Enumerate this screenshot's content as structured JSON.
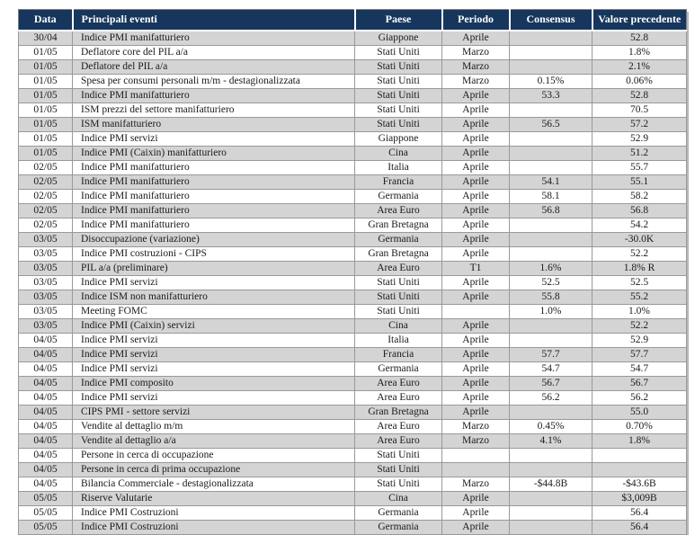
{
  "colors": {
    "header_bg": "#17365D",
    "header_text": "#FFFFFF",
    "row_shade": "#D4D4D4",
    "row_plain": "#FFFFFF",
    "grid_line": "#999999"
  },
  "table": {
    "columns": [
      "Data",
      "Principali eventi",
      "Paese",
      "Periodo",
      "Consensus",
      "Valore precedente"
    ],
    "column_keys": [
      "data",
      "evento",
      "paese",
      "periodo",
      "consensus",
      "valore-precedente"
    ],
    "rows": [
      [
        "30/04",
        "Indice PMI manifatturiero",
        "Giappone",
        "Aprile",
        "",
        "52.8"
      ],
      [
        "01/05",
        "Deflatore core del PIL a/a",
        "Stati Uniti",
        "Marzo",
        "",
        "1.8%"
      ],
      [
        "01/05",
        "Deflatore del PIL a/a",
        "Stati Uniti",
        "Marzo",
        "",
        "2.1%"
      ],
      [
        "01/05",
        "Spesa per consumi personali m/m - destagionalizzata",
        "Stati Uniti",
        "Marzo",
        "0.15%",
        "0.06%"
      ],
      [
        "01/05",
        "Indice PMI manifatturiero",
        "Stati Uniti",
        "Aprile",
        "53.3",
        "52.8"
      ],
      [
        "01/05",
        "ISM  prezzi del settore manifatturiero",
        "Stati Uniti",
        "Aprile",
        "",
        "70.5"
      ],
      [
        "01/05",
        "ISM manifatturiero",
        "Stati Uniti",
        "Aprile",
        "56.5",
        "57.2"
      ],
      [
        "01/05",
        "Indice PMI servizi",
        "Giappone",
        "Aprile",
        "",
        "52.9"
      ],
      [
        "01/05",
        "Indice PMI (Caixin) manifatturiero",
        "Cina",
        "Aprile",
        "",
        "51.2"
      ],
      [
        "02/05",
        "Indice PMI manifatturiero",
        "Italia",
        "Aprile",
        "",
        "55.7"
      ],
      [
        "02/05",
        "Indice PMI manifatturiero",
        "Francia",
        "Aprile",
        "54.1",
        "55.1"
      ],
      [
        "02/05",
        "Indice PMI manifatturiero",
        "Germania",
        "Aprile",
        "58.1",
        "58.2"
      ],
      [
        "02/05",
        "Indice PMI manifatturiero",
        "Area Euro",
        "Aprile",
        "56.8",
        "56.8"
      ],
      [
        "02/05",
        "Indice PMI manifatturiero",
        "Gran Bretagna",
        "Aprile",
        "",
        "54.2"
      ],
      [
        "03/05",
        "Disoccupazione (variazione)",
        "Germania",
        "Aprile",
        "",
        "-30.0K"
      ],
      [
        "03/05",
        "Indice PMI costruzioni - CIPS",
        "Gran Bretagna",
        "Aprile",
        "",
        "52.2"
      ],
      [
        "03/05",
        "PIL a/a (preliminare)",
        "Area Euro",
        "T1",
        "1.6%",
        "1.8% R"
      ],
      [
        "03/05",
        "Indice PMI servizi",
        "Stati Uniti",
        "Aprile",
        "52.5",
        "52.5"
      ],
      [
        "03/05",
        "Indice ISM non manifatturiero",
        "Stati Uniti",
        "Aprile",
        "55.8",
        "55.2"
      ],
      [
        "03/05",
        "Meeting FOMC",
        "Stati Uniti",
        "",
        "1.0%",
        "1.0%"
      ],
      [
        "03/05",
        "Indice PMI (Caixin) servizi",
        "Cina",
        "Aprile",
        "",
        "52.2"
      ],
      [
        "04/05",
        "Indice PMI servizi",
        "Italia",
        "Aprile",
        "",
        "52.9"
      ],
      [
        "04/05",
        "Indice PMI servizi",
        "Francia",
        "Aprile",
        "57.7",
        "57.7"
      ],
      [
        "04/05",
        "Indice PMI servizi",
        "Germania",
        "Aprile",
        "54.7",
        "54.7"
      ],
      [
        "04/05",
        "Indice PMI composito",
        "Area Euro",
        "Aprile",
        "56.7",
        "56.7"
      ],
      [
        "04/05",
        "Indice PMI servizi",
        "Area Euro",
        "Aprile",
        "56.2",
        "56.2"
      ],
      [
        "04/05",
        "CIPS PMI - settore servizi",
        "Gran Bretagna",
        "Aprile",
        "",
        "55.0"
      ],
      [
        "04/05",
        "Vendite al dettaglio m/m",
        "Area Euro",
        "Marzo",
        "0.45%",
        "0.70%"
      ],
      [
        "04/05",
        "Vendite al dettaglio a/a",
        "Area Euro",
        "Marzo",
        "4.1%",
        "1.8%"
      ],
      [
        "04/05",
        "Persone in cerca di occupazione",
        "Stati Uniti",
        "",
        "",
        ""
      ],
      [
        "04/05",
        "Persone in cerca di prima occupazione",
        "Stati Uniti",
        "",
        "",
        ""
      ],
      [
        "04/05",
        "Bilancia Commerciale - destagionalizzata",
        "Stati Uniti",
        "Marzo",
        "-$44.8B",
        "-$43.6B"
      ],
      [
        "05/05",
        "Riserve Valutarie",
        "Cina",
        "Aprile",
        "",
        "$3,009B"
      ],
      [
        "05/05",
        "Indice PMI  Costruzioni",
        "Germania",
        "Aprile",
        "",
        "56.4"
      ],
      [
        "05/05",
        "Indice PMI  Costruzioni",
        "Germania",
        "Aprile",
        "",
        "56.4"
      ]
    ]
  }
}
